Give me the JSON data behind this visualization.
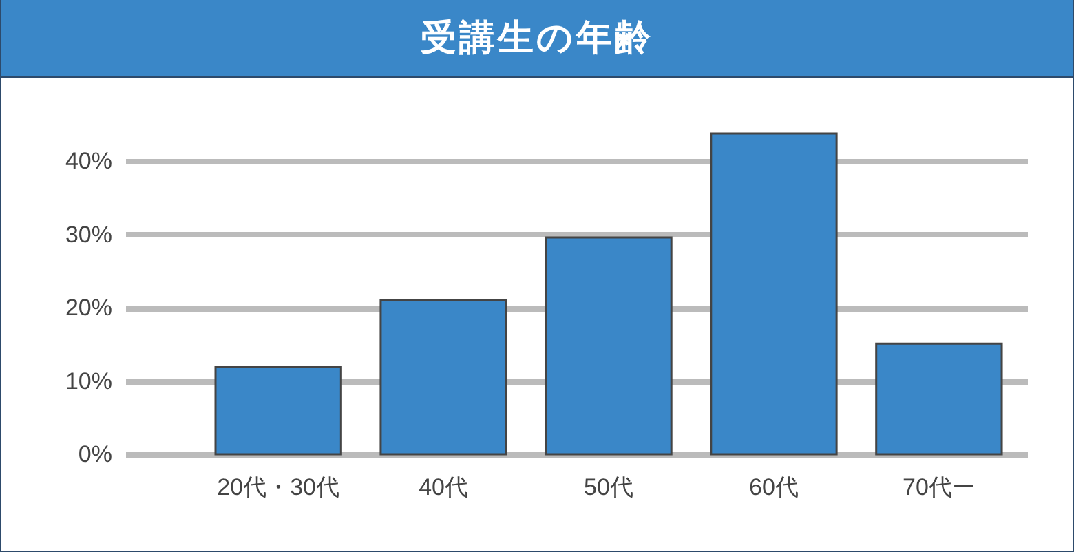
{
  "chart_data": {
    "type": "bar",
    "title": "受講生の年齢",
    "categories": [
      "20代・30代",
      "40代",
      "50代",
      "60代",
      "70代ー"
    ],
    "values": [
      11.9,
      21.1,
      29.6,
      43.8,
      15.1
    ],
    "color": "#3a87c8",
    "yticks": [
      {
        "value": 0,
        "label": "0%"
      },
      {
        "value": 10,
        "label": "10%"
      },
      {
        "value": 20,
        "label": "20%"
      },
      {
        "value": 30,
        "label": "30%"
      },
      {
        "value": 40,
        "label": "40%"
      }
    ],
    "ylim": [
      0,
      43.8
    ],
    "grid": "y"
  }
}
